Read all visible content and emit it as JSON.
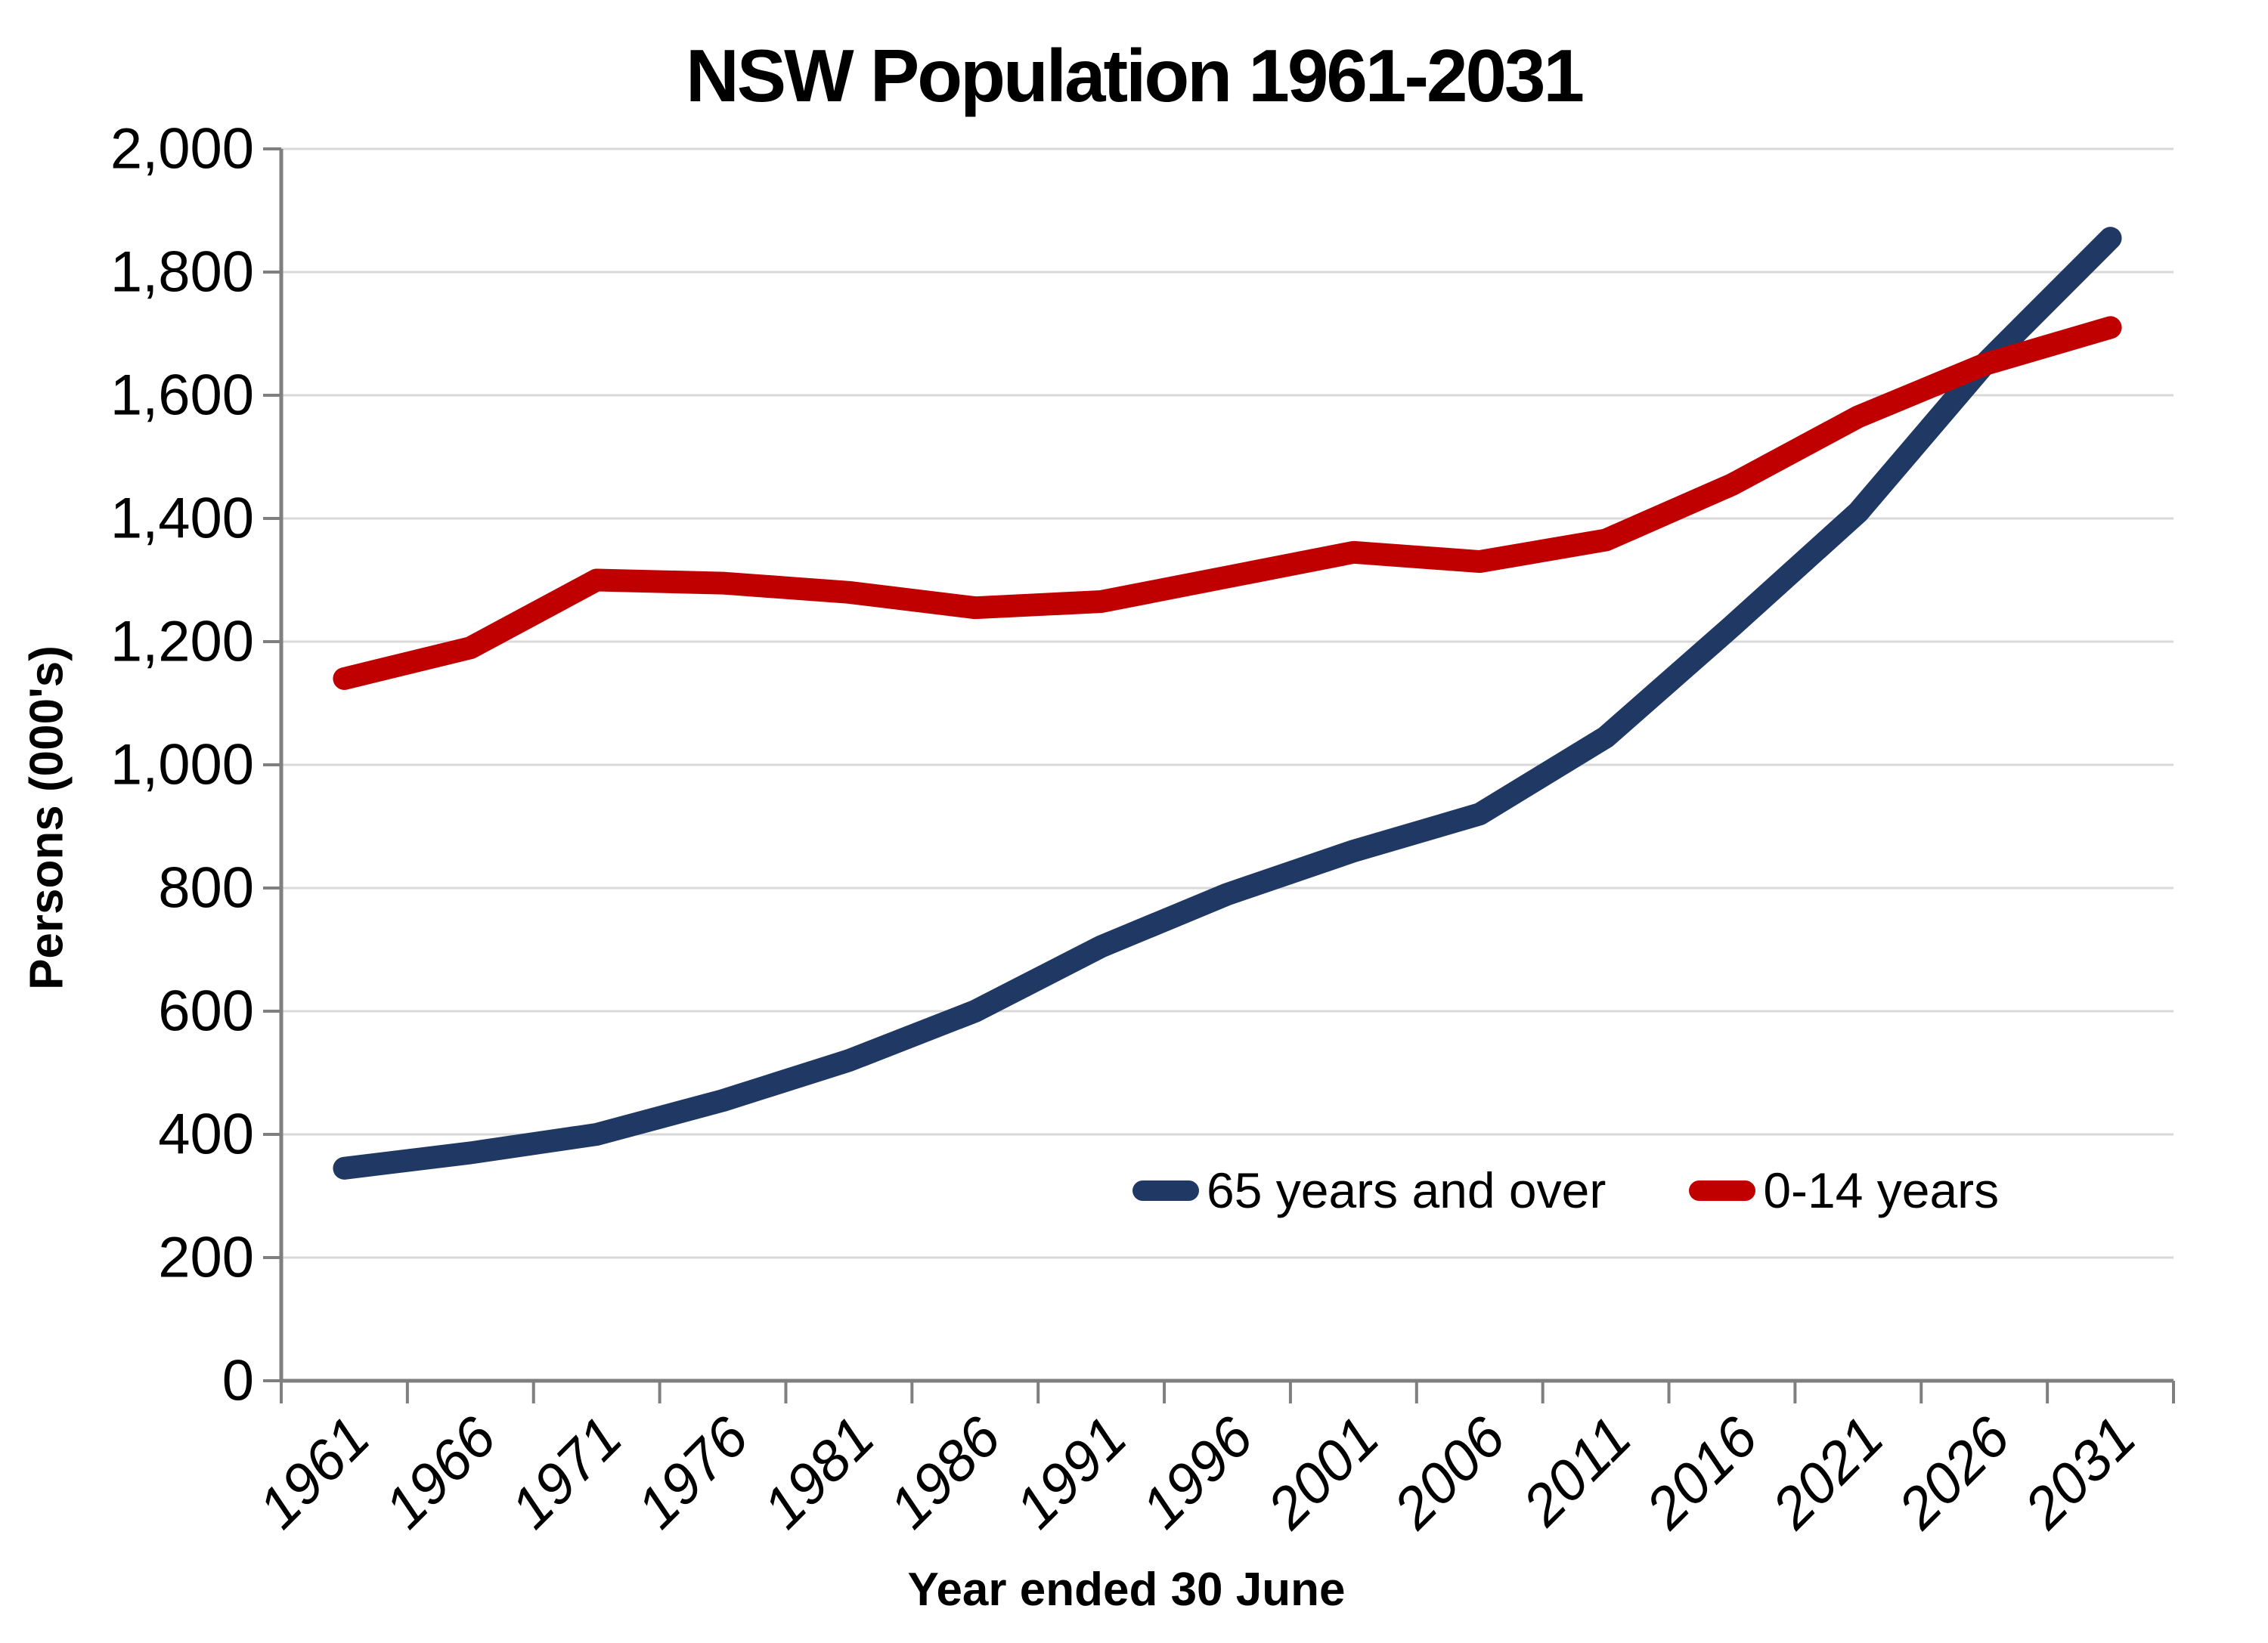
{
  "title": "NSW Population 1961-2031",
  "y_axis": {
    "title": "Persons (000's)",
    "tick_labels": [
      "0",
      "200",
      "400",
      "600",
      "800",
      "1,000",
      "1,200",
      "1,400",
      "1,600",
      "1,800",
      "2,000"
    ]
  },
  "x_axis": {
    "title": "Year ended 30 June"
  },
  "legend": {
    "items": [
      "65 years and over",
      "0-14 years"
    ]
  },
  "colors": {
    "series_65_and_over": "#1F3864",
    "series_0_14": "#C00000",
    "gridline": "#D9D9D9",
    "axis": "#7F7F7F",
    "text": "#000000",
    "background": "#FFFFFF"
  },
  "chart_data": {
    "type": "line",
    "title": "NSW Population 1961-2031",
    "xlabel": "Year ended 30 June",
    "ylabel": "Persons (000's)",
    "categories": [
      1961,
      1966,
      1971,
      1976,
      1981,
      1986,
      1991,
      1996,
      2001,
      2006,
      2011,
      2016,
      2021,
      2026,
      2031
    ],
    "series": [
      {
        "name": "65 years and over",
        "color": "#1F3864",
        "values": [
          345,
          370,
          400,
          455,
          520,
          600,
          705,
          790,
          860,
          920,
          1045,
          1225,
          1410,
          1650,
          1855
        ]
      },
      {
        "name": "0-14 years",
        "color": "#C00000",
        "values": [
          1140,
          1190,
          1300,
          1295,
          1280,
          1255,
          1265,
          1305,
          1345,
          1330,
          1365,
          1455,
          1565,
          1650,
          1710
        ]
      }
    ],
    "ylim": [
      0,
      2000
    ],
    "ytick_step": 200,
    "grid": true,
    "legend_position": "inside-bottom-right"
  }
}
